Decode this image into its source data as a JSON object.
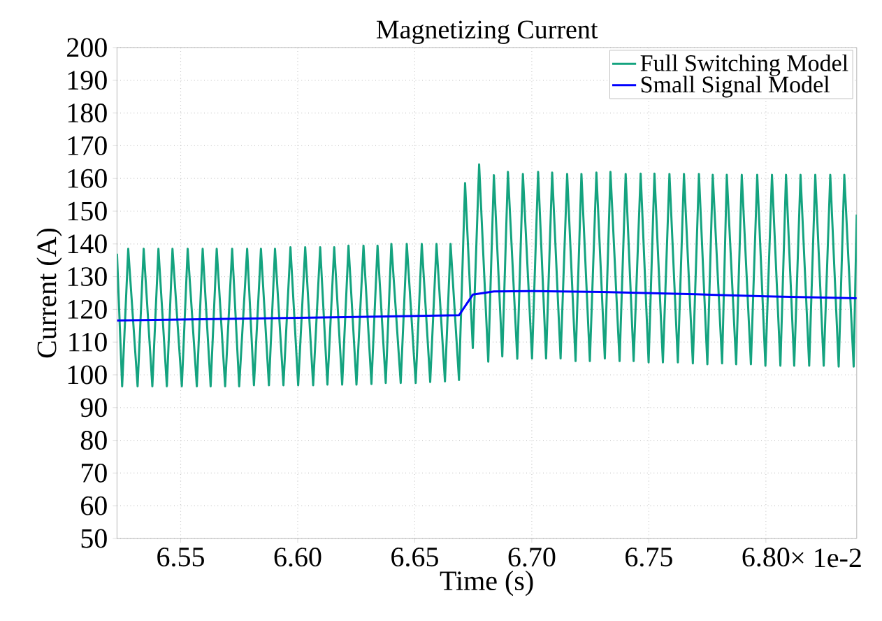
{
  "chart_data": {
    "type": "line",
    "title": "Magnetizing Current",
    "xlabel": "Time (s)",
    "ylabel": "Current (A)",
    "xlim": [
      6.5228,
      6.8388
    ],
    "ylim": [
      50,
      200
    ],
    "xticks": [
      6.55,
      {
        "value": 6.6,
        "label": "6.60"
      },
      6.65,
      {
        "value": 6.7,
        "label": "6.70"
      },
      6.75,
      {
        "value": 6.8,
        "label": "6.80"
      }
    ],
    "yticks": [
      50,
      60,
      70,
      80,
      90,
      100,
      110,
      120,
      130,
      140,
      150,
      160,
      170,
      180,
      190,
      200
    ],
    "grid": true,
    "legend": "top right",
    "annotations": [
      "× 1e-2"
    ],
    "series": [
      {
        "name": "Full Switching Model",
        "color": "#14a37f",
        "x": [
          6.5228,
          6.525,
          6.5276,
          6.5316,
          6.5342,
          6.5379,
          6.5405,
          6.5441,
          6.5465,
          6.5505,
          6.553,
          6.5569,
          6.5594,
          6.5628,
          6.5654,
          6.569,
          6.572,
          6.575,
          6.5784,
          6.5813,
          6.5843,
          6.5877,
          6.5903,
          6.5939,
          6.5969,
          6.6002,
          6.6032,
          6.6066,
          6.6096,
          6.6127,
          6.6156,
          6.619,
          6.6217,
          6.6251,
          6.6281,
          6.6315,
          6.6341,
          6.6376,
          6.64,
          6.644,
          6.6466,
          6.6504,
          6.653,
          6.6566,
          6.6593,
          6.6629,
          6.6653,
          6.6689,
          6.6715,
          6.6748,
          6.6775,
          6.6814,
          6.6838,
          6.6874,
          6.6898,
          6.6938,
          6.6962,
          6.7001,
          6.7027,
          6.7061,
          6.7087,
          6.7123,
          6.7151,
          6.7187,
          6.7212,
          6.7248,
          6.7276,
          6.7312,
          6.7336,
          6.7375,
          6.7401,
          6.7435,
          6.7465,
          6.7499,
          6.7524,
          6.756,
          6.7588,
          6.7624,
          6.765,
          6.7688,
          6.7714,
          6.775,
          6.7773,
          6.7813,
          6.7833,
          6.7873,
          6.7897,
          6.7936,
          6.7963,
          6.7998,
          6.8026,
          6.8062,
          6.8086,
          6.8121,
          6.8148,
          6.8185,
          6.8211,
          6.8247,
          6.8275,
          6.8311,
          6.8335,
          6.8375,
          6.8388
        ],
        "values": [
          137,
          96.5,
          138.5,
          96.5,
          138.5,
          96.5,
          138.5,
          96.5,
          138.5,
          96.5,
          138.5,
          96.5,
          138.5,
          96.5,
          138.5,
          96.5,
          138.5,
          96.5,
          138.5,
          96.8,
          138.5,
          96.8,
          138.5,
          96.8,
          139,
          96.8,
          139,
          96.8,
          139,
          97,
          139,
          97,
          139.5,
          97,
          139.5,
          97.2,
          139.5,
          97.5,
          140,
          97.5,
          140,
          97.5,
          140,
          97.8,
          140,
          98,
          140,
          98.4,
          158.6,
          108.2,
          164.3,
          104,
          161,
          105.6,
          162,
          104.9,
          161.4,
          105,
          162,
          105,
          161.8,
          105,
          161.4,
          104.2,
          161.4,
          104.2,
          161.8,
          105,
          162,
          104.2,
          161.4,
          104.2,
          161.5,
          103.8,
          161.5,
          103.8,
          161.4,
          103.8,
          161.4,
          103.5,
          161.4,
          103.2,
          161.1,
          103.5,
          161.1,
          103.2,
          161.1,
          103.2,
          161.1,
          102.8,
          161.1,
          102.8,
          161.1,
          102.8,
          161.1,
          102.8,
          161.1,
          102.8,
          161.1,
          102.5,
          161.1,
          102.5,
          149
        ]
      },
      {
        "name": "Small Signal Model",
        "color": "#0000ff",
        "x": [
          6.5228,
          6.6,
          6.6689,
          6.6748,
          6.6838,
          6.7,
          6.73,
          6.77,
          6.8,
          6.8388
        ],
        "values": [
          116.6,
          117.4,
          118.2,
          124.5,
          125.5,
          125.6,
          125.3,
          124.6,
          124.0,
          123.4
        ]
      }
    ]
  }
}
